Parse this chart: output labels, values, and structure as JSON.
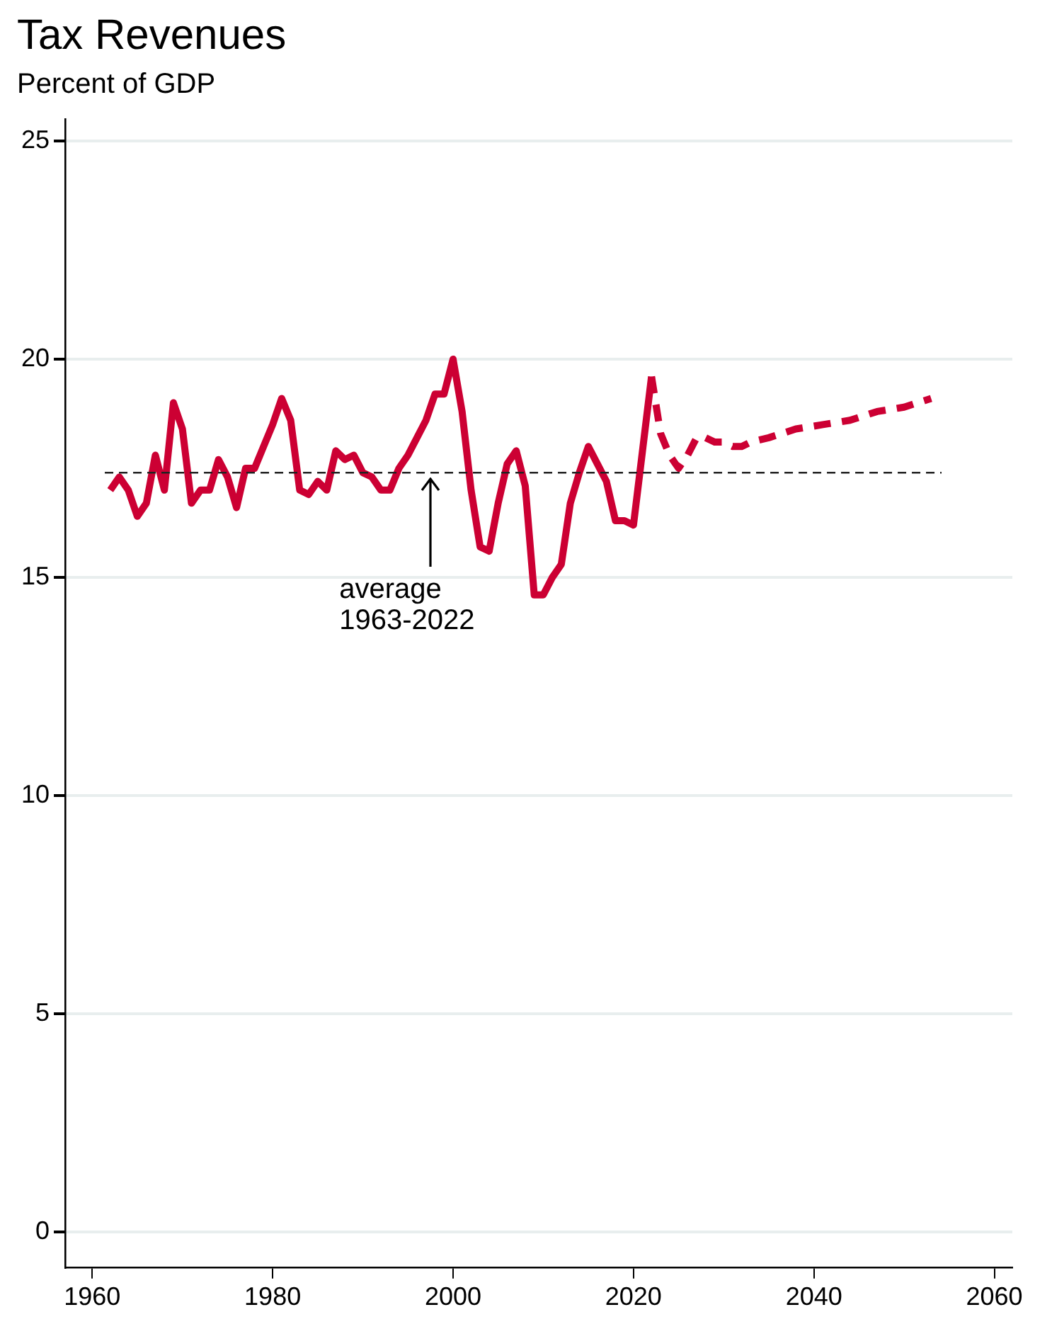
{
  "chart_data": {
    "type": "line",
    "title": "Tax Revenues",
    "subtitle": "Percent of GDP",
    "series": [
      {
        "color": "#cc0033",
        "line_style": "solid",
        "x": [
          1962,
          1963,
          1964,
          1965,
          1966,
          1967,
          1968,
          1969,
          1970,
          1971,
          1972,
          1973,
          1974,
          1975,
          1976,
          1977,
          1978,
          1979,
          1980,
          1981,
          1982,
          1983,
          1984,
          1985,
          1986,
          1987,
          1988,
          1989,
          1990,
          1991,
          1992,
          1993,
          1994,
          1995,
          1996,
          1997,
          1998,
          1999,
          2000,
          2001,
          2002,
          2003,
          2004,
          2005,
          2006,
          2007,
          2008,
          2009,
          2010,
          2011,
          2012,
          2013,
          2014,
          2015,
          2016,
          2017,
          2018,
          2019,
          2020,
          2021,
          2022
        ],
        "values": [
          17.0,
          17.3,
          17.0,
          16.4,
          16.7,
          17.8,
          17.0,
          19.0,
          18.4,
          16.7,
          17.0,
          17.0,
          17.7,
          17.3,
          16.6,
          17.5,
          17.5,
          18.0,
          18.5,
          19.1,
          18.6,
          17.0,
          16.9,
          17.2,
          17.0,
          17.9,
          17.7,
          17.8,
          17.4,
          17.3,
          17.0,
          17.0,
          17.5,
          17.8,
          18.2,
          18.6,
          19.2,
          19.2,
          20.0,
          18.8,
          17.0,
          15.7,
          15.6,
          16.7,
          17.6,
          17.9,
          17.1,
          14.6,
          14.6,
          15.0,
          15.3,
          16.7,
          17.4,
          18.0,
          17.6,
          17.2,
          16.3,
          16.3,
          16.2,
          17.9,
          19.6
        ]
      },
      {
        "color": "#cc0033",
        "line_style": "dashed",
        "x": [
          2022,
          2023,
          2024,
          2025,
          2026,
          2027,
          2028,
          2029,
          2030,
          2031,
          2032,
          2033,
          2035,
          2038,
          2041,
          2044,
          2047,
          2050,
          2053
        ],
        "values": [
          19.6,
          18.3,
          17.8,
          17.5,
          17.8,
          18.2,
          18.2,
          18.1,
          18.1,
          18.0,
          18.0,
          18.1,
          18.2,
          18.4,
          18.5,
          18.6,
          18.8,
          18.9,
          19.1
        ]
      }
    ],
    "xlim": [
      1957,
      2062
    ],
    "xticks": [
      1960,
      1980,
      2000,
      2020,
      2040,
      2060
    ],
    "ylim": [
      -0.8,
      25.5
    ],
    "yticks": [
      0,
      5,
      10,
      15,
      20,
      25
    ],
    "grid": "y",
    "legend": false,
    "marker": "none",
    "ref_lines": [
      {
        "axis": "y",
        "value": 17.4,
        "color": "#222222",
        "line_style": "dashed"
      }
    ],
    "annotations": [
      "average 1963-2022"
    ]
  }
}
